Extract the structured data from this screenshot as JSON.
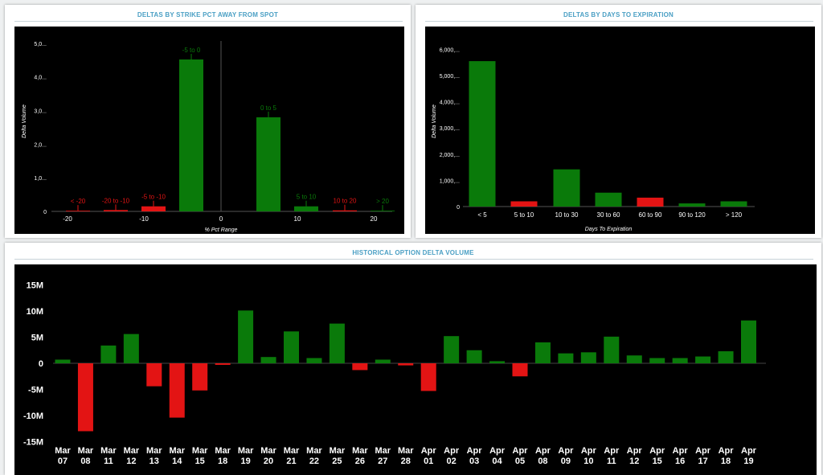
{
  "colors": {
    "positive": "#0a7a0a",
    "negative": "#e31414",
    "title": "#4a9fc4",
    "background": "#000000",
    "axis_text": "#ffffff"
  },
  "chart_data": [
    {
      "id": "strike",
      "type": "bar",
      "title": "DELTAS BY STRIKE PCT AWAY FROM SPOT",
      "xlabel": "% Pct Range",
      "ylabel": "Delta Volume",
      "x_axis_ticks": [
        "-20",
        "-10",
        "0",
        "10",
        "20"
      ],
      "y_axis_ticks": [
        "0",
        "1,0...",
        "2,0...",
        "3,0...",
        "4,0...",
        "5,0..."
      ],
      "ylim": [
        0,
        5000
      ],
      "grid": false,
      "categories": [
        "< -20",
        "-20 to -10",
        "-5 to -10",
        "-5 to 0",
        "0 to 5",
        "5 to 10",
        "10 to 20",
        "> 20"
      ],
      "values": [
        20,
        40,
        150,
        4520,
        2800,
        150,
        30,
        20
      ],
      "signs": [
        "neg",
        "neg",
        "neg",
        "pos",
        "pos",
        "pos",
        "neg",
        "pos"
      ]
    },
    {
      "id": "days",
      "type": "bar",
      "title": "DELTAS BY DAYS TO EXPIRATION",
      "xlabel": "Days To Expiration",
      "ylabel": "Delta Volume",
      "y_axis_ticks": [
        "0",
        "1,000,...",
        "2,000,...",
        "3,000,...",
        "4,000,...",
        "5,000,...",
        "6,000,..."
      ],
      "ylim": [
        0,
        6000
      ],
      "grid": false,
      "categories": [
        "< 5",
        "5 to 10",
        "10 to 30",
        "30 to 60",
        "60 to 90",
        "90 to 120",
        "> 120"
      ],
      "values": [
        5550,
        200,
        1420,
        530,
        340,
        120,
        200
      ],
      "signs": [
        "pos",
        "neg",
        "pos",
        "pos",
        "neg",
        "pos",
        "pos"
      ]
    },
    {
      "id": "history",
      "type": "bar",
      "title": "HISTORICAL OPTION DELTA VOLUME",
      "xlabel": "",
      "ylabel": "",
      "y_axis_ticks": [
        "15M",
        "10M",
        "5M",
        "0",
        "-5M",
        "-10M",
        "-15M"
      ],
      "ylim": [
        -15000000,
        15000000
      ],
      "grid": false,
      "categories": [
        "Mar 07",
        "Mar 08",
        "Mar 11",
        "Mar 12",
        "Mar 13",
        "Mar 14",
        "Mar 15",
        "Mar 18",
        "Mar 19",
        "Mar 20",
        "Mar 21",
        "Mar 22",
        "Mar 25",
        "Mar 26",
        "Mar 27",
        "Mar 28",
        "Apr 01",
        "Apr 02",
        "Apr 03",
        "Apr 04",
        "Apr 05",
        "Apr 08",
        "Apr 09",
        "Apr 10",
        "Apr 11",
        "Apr 12",
        "Apr 15",
        "Apr 16",
        "Apr 17",
        "Apr 18",
        "Apr 19"
      ],
      "values": [
        700000,
        -13000000,
        3400000,
        5600000,
        -4400000,
        -10400000,
        -5200000,
        -300000,
        10100000,
        1200000,
        6100000,
        1000000,
        7600000,
        -1300000,
        700000,
        -400000,
        -5300000,
        5200000,
        2500000,
        400000,
        -2500000,
        4000000,
        1900000,
        2100000,
        5100000,
        1500000,
        1000000,
        1000000,
        1300000,
        2300000,
        8200000
      ]
    }
  ]
}
